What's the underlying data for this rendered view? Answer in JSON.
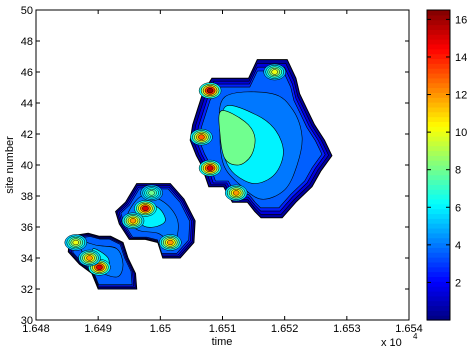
{
  "chart_data": {
    "type": "heatmap",
    "subtype": "filled-contour",
    "title": "",
    "xlabel": "time",
    "ylabel": "site number",
    "x_exponent_label": "x 10",
    "x_exponent_power": "4",
    "xlim": [
      16480,
      16540
    ],
    "ylim": [
      30,
      50
    ],
    "x_ticks": [
      16480,
      16490,
      16500,
      16510,
      16520,
      16530,
      16540
    ],
    "x_tick_labels": [
      "1.648",
      "1.649",
      "1.65",
      "1.651",
      "1.652",
      "1.653",
      "1.654"
    ],
    "y_ticks": [
      30,
      32,
      34,
      36,
      38,
      40,
      42,
      44,
      46,
      48,
      50
    ],
    "y_tick_labels": [
      "30",
      "32",
      "34",
      "36",
      "38",
      "40",
      "42",
      "44",
      "46",
      "48",
      "50"
    ],
    "colorbar": {
      "colormap": "jet",
      "range": [
        0,
        16.5
      ],
      "ticks": [
        2,
        4,
        6,
        8,
        10,
        12,
        14,
        16
      ],
      "tick_labels": [
        "2",
        "4",
        "6",
        "8",
        "10",
        "12",
        "14",
        "16"
      ]
    },
    "grid": false,
    "clusters": [
      {
        "name": "upper-right",
        "outer_boundary": [
          [
            16508.3,
            45.6
          ],
          [
            16514.2,
            45.6
          ],
          [
            16515.6,
            46.8
          ],
          [
            16520.4,
            46.8
          ],
          [
            16521.8,
            45.6
          ],
          [
            16522.4,
            44.6
          ],
          [
            16523.6,
            43.6
          ],
          [
            16524.8,
            42.6
          ],
          [
            16526.4,
            41.6
          ],
          [
            16527.6,
            40.6
          ],
          [
            16525.8,
            39.6
          ],
          [
            16524.4,
            38.6
          ],
          [
            16521.8,
            37.6
          ],
          [
            16519.6,
            36.6
          ],
          [
            16516.2,
            36.6
          ],
          [
            16515.2,
            37.0
          ],
          [
            16514.0,
            37.6
          ],
          [
            16511.6,
            37.6
          ],
          [
            16510.2,
            38.6
          ],
          [
            16507.8,
            38.6
          ],
          [
            16506.6,
            40.0
          ],
          [
            16505.8,
            40.6
          ],
          [
            16504.8,
            41.6
          ],
          [
            16505.2,
            42.6
          ],
          [
            16506.0,
            43.6
          ],
          [
            16506.8,
            44.6
          ]
        ],
        "levels": [
          {
            "level": 4,
            "points": [
              [
                16510.4,
                44.4
              ],
              [
                16518.0,
                44.6
              ],
              [
                16521.4,
                43.5
              ],
              [
                16522.8,
                41.8
              ],
              [
                16522.0,
                40.0
              ],
              [
                16520.0,
                38.4
              ],
              [
                16516.2,
                37.8
              ],
              [
                16512.6,
                38.8
              ],
              [
                16510.2,
                40.0
              ],
              [
                16509.6,
                42.0
              ]
            ]
          },
          {
            "level": 6,
            "points": [
              [
                16510.6,
                43.8
              ],
              [
                16515.6,
                43.2
              ],
              [
                16518.6,
                42.2
              ],
              [
                16519.8,
                40.8
              ],
              [
                16518.4,
                39.4
              ],
              [
                16515.2,
                38.8
              ],
              [
                16512.0,
                39.4
              ],
              [
                16510.4,
                40.4
              ],
              [
                16509.8,
                42.0
              ]
            ]
          },
          {
            "level": 8,
            "points": [
              [
                16509.8,
                43.5
              ],
              [
                16513.6,
                42.8
              ],
              [
                16515.2,
                41.8
              ],
              [
                16514.6,
                40.6
              ],
              [
                16512.6,
                40.0
              ],
              [
                16510.4,
                40.4
              ],
              [
                16509.6,
                42.0
              ]
            ]
          }
        ],
        "peaks": [
          {
            "x": 16508.0,
            "y": 44.8,
            "value": 16
          },
          {
            "x": 16508.0,
            "y": 39.8,
            "value": 15
          },
          {
            "x": 16506.6,
            "y": 41.8,
            "value": 13
          },
          {
            "x": 16512.2,
            "y": 38.2,
            "value": 12
          },
          {
            "x": 16518.4,
            "y": 46.0,
            "value": 10
          }
        ]
      },
      {
        "name": "middle",
        "outer_boundary": [
          [
            16496.2,
            38.8
          ],
          [
            16501.6,
            38.8
          ],
          [
            16503.8,
            37.8
          ],
          [
            16505.6,
            36.4
          ],
          [
            16505.4,
            35.0
          ],
          [
            16503.2,
            34.0
          ],
          [
            16500.4,
            34.0
          ],
          [
            16499.6,
            35.0
          ],
          [
            16497.6,
            35.2
          ],
          [
            16495.0,
            35.2
          ],
          [
            16493.4,
            36.2
          ],
          [
            16492.8,
            37.0
          ],
          [
            16494.4,
            37.6
          ]
        ],
        "levels": [
          {
            "level": 4,
            "points": [
              [
                16497.0,
                38.0
              ],
              [
                16500.6,
                37.6
              ],
              [
                16502.8,
                36.4
              ],
              [
                16502.2,
                35.0
              ],
              [
                16499.6,
                35.6
              ],
              [
                16496.4,
                35.8
              ],
              [
                16494.6,
                36.6
              ]
            ]
          },
          {
            "level": 6,
            "points": [
              [
                16497.2,
                37.6
              ],
              [
                16499.8,
                37.2
              ],
              [
                16500.8,
                36.4
              ],
              [
                16499.0,
                36.0
              ],
              [
                16497.0,
                36.2
              ]
            ]
          }
        ],
        "peaks": [
          {
            "x": 16497.6,
            "y": 37.2,
            "value": 15
          },
          {
            "x": 16495.6,
            "y": 36.4,
            "value": 12
          },
          {
            "x": 16501.6,
            "y": 35.0,
            "value": 12
          },
          {
            "x": 16498.6,
            "y": 38.2,
            "value": 8
          }
        ]
      },
      {
        "name": "lower-left",
        "outer_boundary": [
          [
            16485.4,
            35.4
          ],
          [
            16488.4,
            35.6
          ],
          [
            16490.2,
            35.4
          ],
          [
            16492.0,
            35.4
          ],
          [
            16494.0,
            35.0
          ],
          [
            16494.8,
            34.0
          ],
          [
            16496.0,
            33.0
          ],
          [
            16496.2,
            32.0
          ],
          [
            16490.0,
            32.0
          ],
          [
            16489.0,
            33.0
          ],
          [
            16487.0,
            33.6
          ],
          [
            16485.2,
            34.4
          ]
        ],
        "levels": [
          {
            "level": 4,
            "points": [
              [
                16487.0,
                35.0
              ],
              [
                16490.0,
                34.8
              ],
              [
                16493.0,
                34.6
              ],
              [
                16494.0,
                33.6
              ],
              [
                16493.2,
                32.8
              ],
              [
                16490.8,
                33.0
              ],
              [
                16488.6,
                33.6
              ]
            ]
          },
          {
            "level": 6,
            "points": [
              [
                16489.2,
                34.6
              ],
              [
                16491.6,
                34.0
              ],
              [
                16491.4,
                33.2
              ],
              [
                16489.6,
                33.6
              ]
            ]
          }
        ],
        "peaks": [
          {
            "x": 16490.2,
            "y": 33.4,
            "value": 15
          },
          {
            "x": 16488.6,
            "y": 34.0,
            "value": 12
          },
          {
            "x": 16486.4,
            "y": 35.0,
            "value": 10
          }
        ]
      }
    ]
  }
}
